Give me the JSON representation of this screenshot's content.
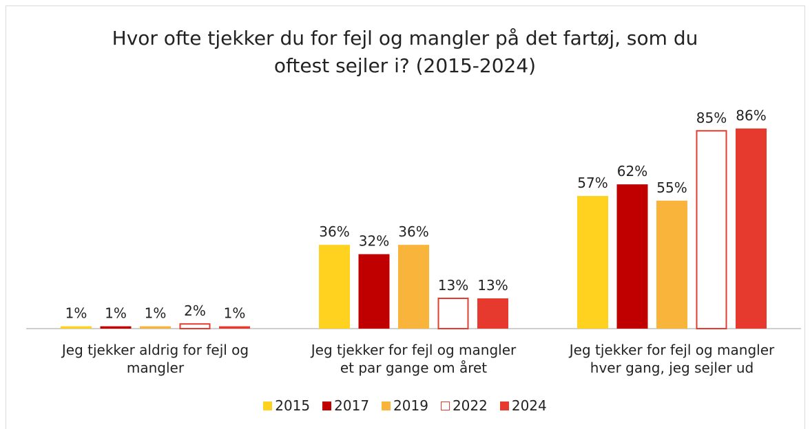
{
  "chart_data": {
    "type": "bar",
    "title": "Hvor ofte tjekker du for fejl og mangler på det fartøj, som du oftest sejler i? (2015-2024)",
    "categories": [
      "Jeg tjekker aldrig for fejl og mangler",
      "Jeg tjekker for fejl og mangler et par gange om året",
      "Jeg tjekker for fejl og mangler hver gang, jeg sejler ud"
    ],
    "series": [
      {
        "name": "2015",
        "color": "#FFD21F",
        "values": [
          1,
          36,
          57
        ],
        "value_labels": [
          "1%",
          "36%",
          "57%"
        ]
      },
      {
        "name": "2017",
        "color": "#C00000",
        "values": [
          1,
          32,
          62
        ],
        "value_labels": [
          "1%",
          "32%",
          "62%"
        ]
      },
      {
        "name": "2019",
        "color": "#F9B43C",
        "values": [
          1,
          36,
          55
        ],
        "value_labels": [
          "1%",
          "36%",
          "55%"
        ]
      },
      {
        "name": "2022",
        "color": "#E63A2E",
        "fill": "none",
        "values": [
          2,
          13,
          85
        ],
        "value_labels": [
          "2%",
          "13%",
          "85%"
        ]
      },
      {
        "name": "2024",
        "color": "#E63A2E",
        "values": [
          1,
          13,
          86
        ],
        "value_labels": [
          "1%",
          "13%",
          "86%"
        ]
      }
    ],
    "legend": "bottom"
  }
}
